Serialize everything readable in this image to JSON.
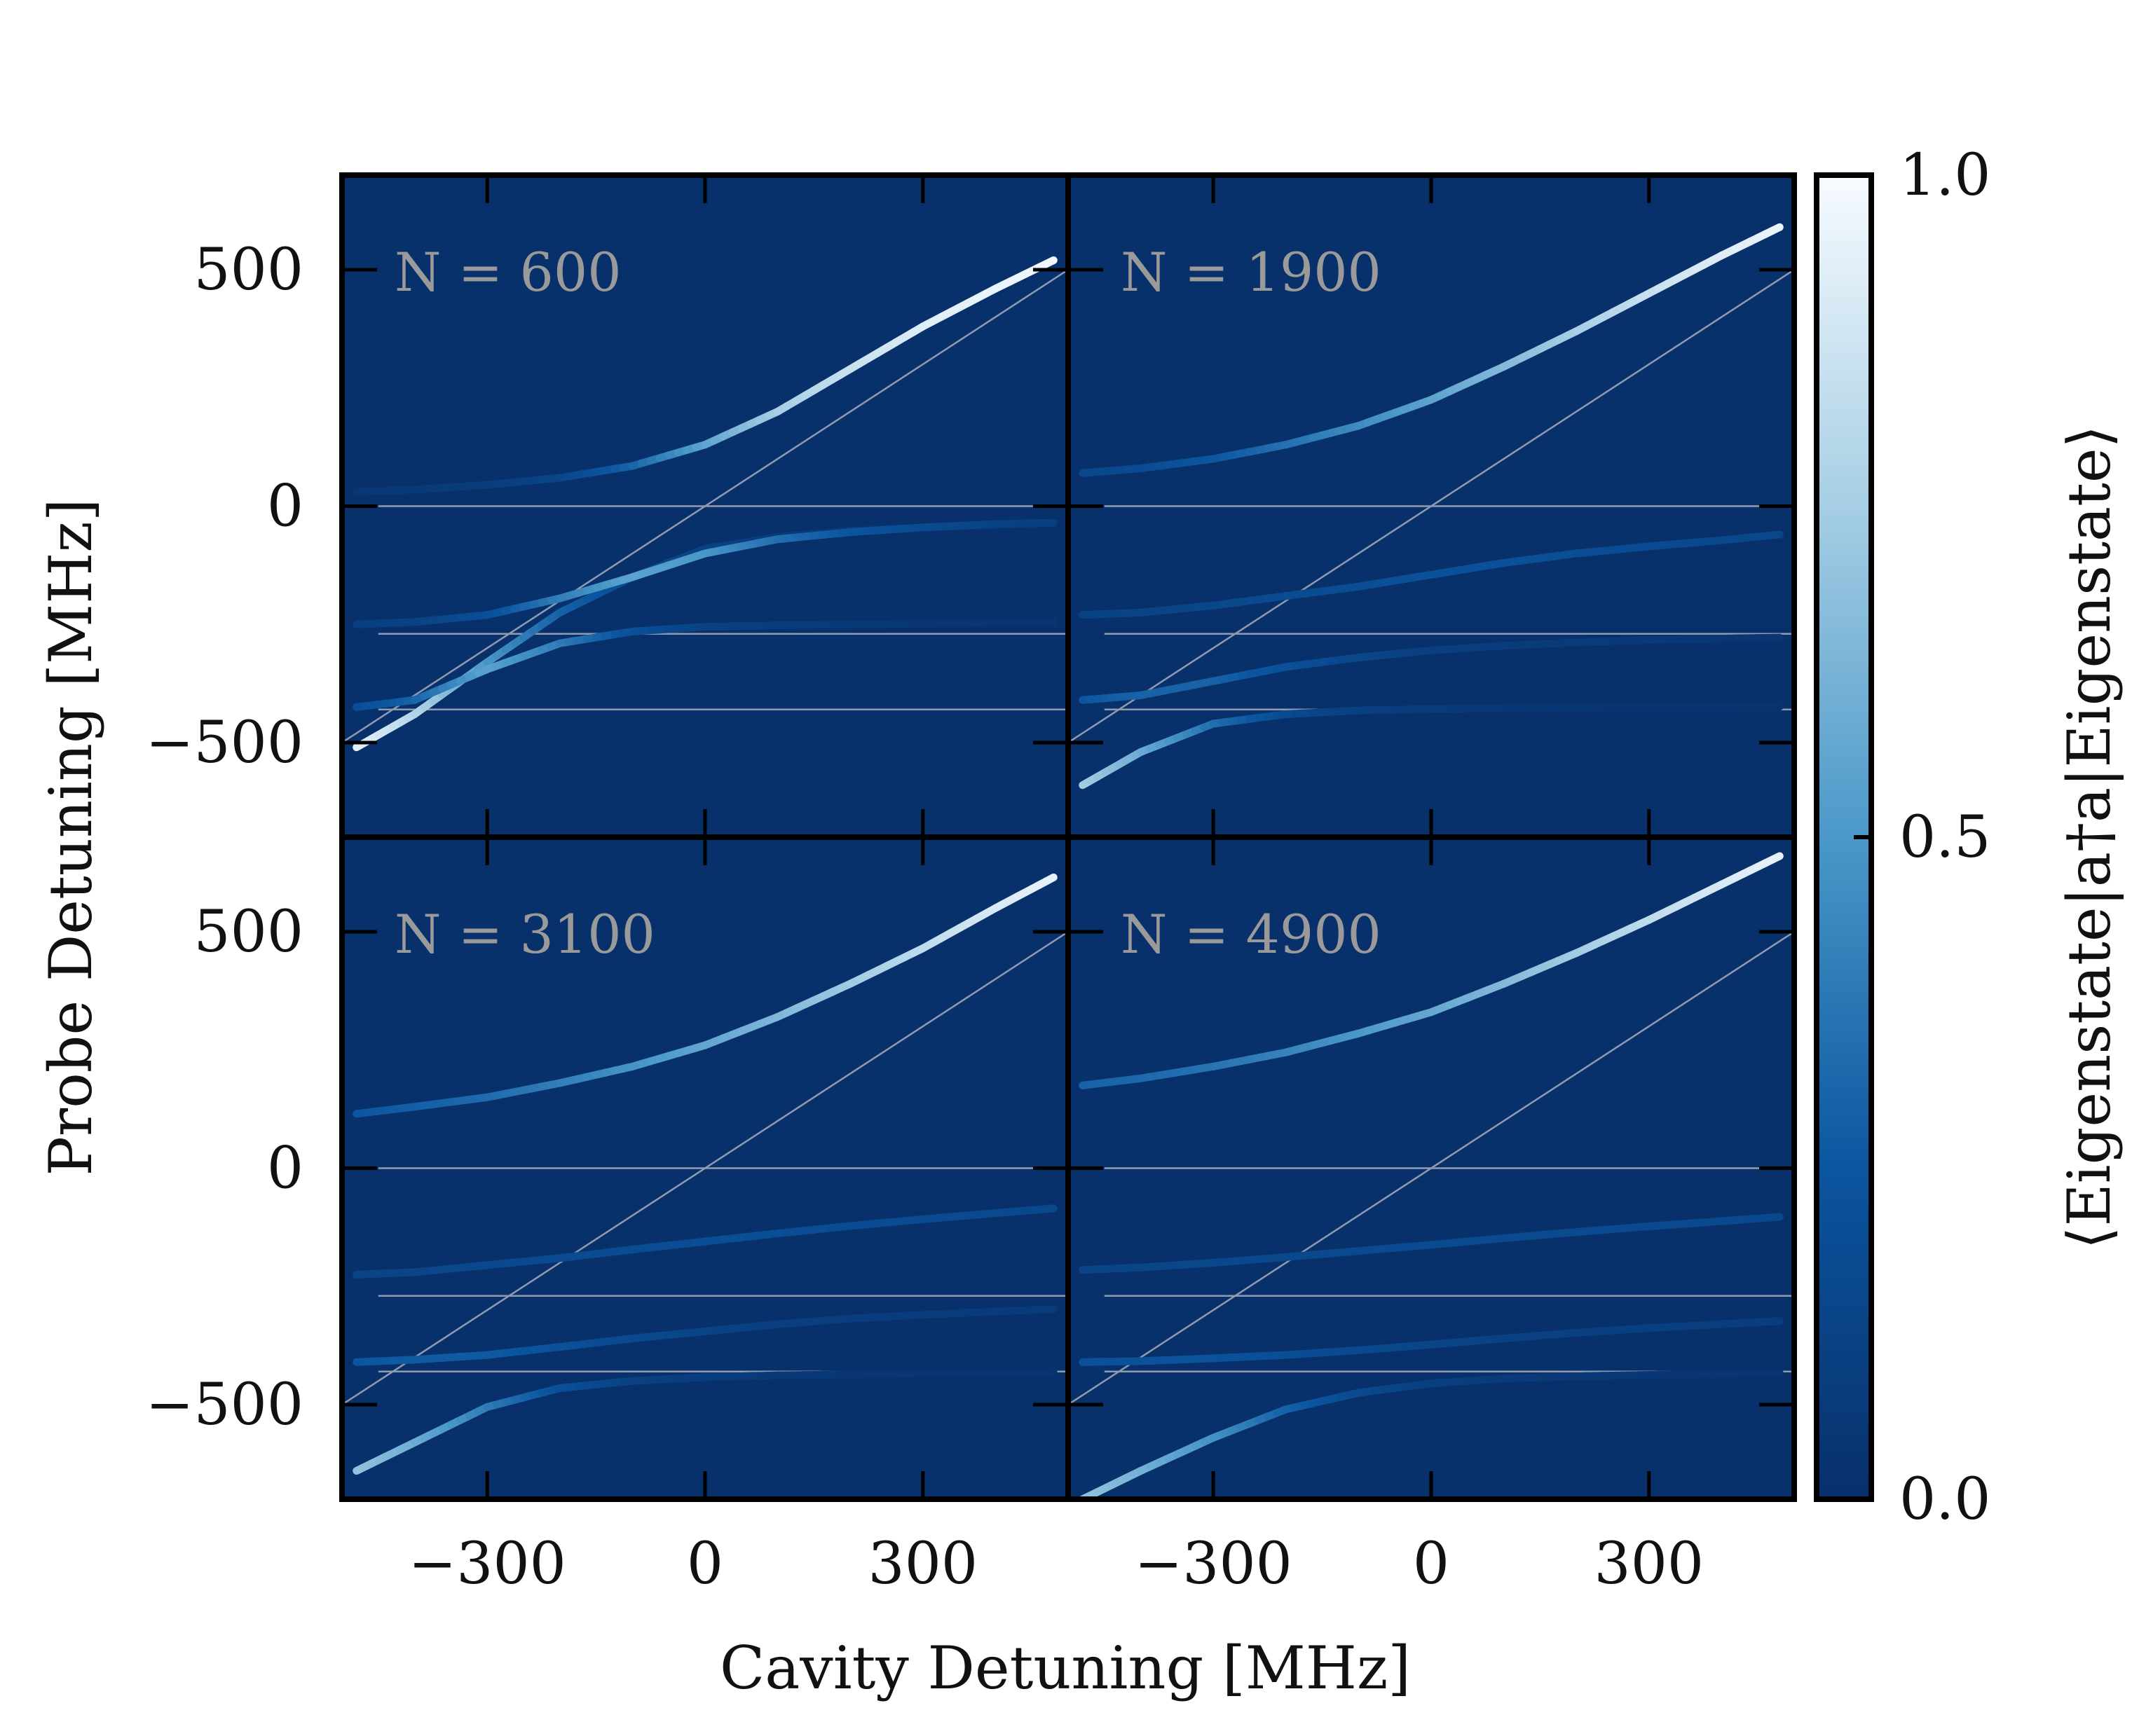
{
  "chart_data": {
    "type": "line",
    "xlabel": "Cavity Detuning [MHz]",
    "ylabel": "Probe Detuning [MHz]",
    "colorbar": {
      "label": "⟨Eigenstate|a†a|Eigenstate⟩",
      "ticks": [
        "0.0",
        "0.5",
        "1.0"
      ],
      "range": [
        0.0,
        1.0
      ],
      "colormap": "Blues_r"
    },
    "xlim": [
      -500,
      500
    ],
    "ylim": [
      -700,
      700
    ],
    "x_ticks": [
      -300,
      0,
      300
    ],
    "x_tick_labels": [
      "−300",
      "0",
      "300"
    ],
    "y_ticks": [
      -500,
      0,
      500
    ],
    "y_tick_labels": [
      "−500",
      "0",
      "500"
    ],
    "reference_lines": {
      "horizontal_levels": [
        0,
        -270,
        -430
      ],
      "diagonal": "y = x"
    },
    "colors": {
      "background": "#08306b",
      "reference_line": "#8f9bb0"
    },
    "panels": [
      {
        "label": "N = 600",
        "N": 600,
        "branches": [
          {
            "x": [
              -480,
              -400,
              -300,
              -200,
              -100,
              0,
              100,
              200,
              300,
              400,
              480
            ],
            "y": [
              -510,
              -440,
              -330,
              -225,
              -150,
              -90,
              -65,
              -52,
              -45,
              -40,
              -37
            ],
            "intensity": [
              0.95,
              0.8,
              0.5,
              0.3,
              0.2,
              0.12,
              0.08,
              0.06,
              0.05,
              0.04,
              0.03
            ]
          },
          {
            "x": [
              -480,
              -400,
              -300,
              -200,
              -100,
              0,
              100,
              200,
              300,
              400,
              480
            ],
            "y": [
              -425,
              -410,
              -345,
              -290,
              -265,
              -255,
              -252,
              -250,
              -248,
              -246,
              -245
            ],
            "intensity": [
              0.2,
              0.3,
              0.55,
              0.4,
              0.22,
              0.12,
              0.08,
              0.06,
              0.05,
              0.04,
              0.03
            ]
          },
          {
            "x": [
              -480,
              -400,
              -300,
              -200,
              -100,
              0,
              100,
              200,
              300,
              400,
              480
            ],
            "y": [
              -250,
              -245,
              -230,
              -195,
              -150,
              -100,
              -70,
              -55,
              -45,
              -38,
              -35
            ],
            "intensity": [
              0.1,
              0.12,
              0.2,
              0.4,
              0.55,
              0.5,
              0.35,
              0.25,
              0.18,
              0.12,
              0.1
            ]
          },
          {
            "x": [
              -480,
              -400,
              -300,
              -200,
              -100,
              0,
              100,
              200,
              300,
              400,
              480
            ],
            "y": [
              30,
              35,
              45,
              60,
              85,
              130,
              200,
              290,
              380,
              460,
              520
            ],
            "intensity": [
              0.05,
              0.06,
              0.08,
              0.14,
              0.3,
              0.55,
              0.75,
              0.85,
              0.92,
              0.96,
              0.98
            ]
          }
        ]
      },
      {
        "label": "N = 1900",
        "N": 1900,
        "branches": [
          {
            "x": [
              -480,
              -400,
              -300,
              -200,
              -100,
              0,
              100,
              200,
              300,
              400,
              480
            ],
            "y": [
              -590,
              -520,
              -460,
              -440,
              -432,
              -429,
              -427,
              -426,
              -425,
              -425,
              -424
            ],
            "intensity": [
              0.75,
              0.6,
              0.35,
              0.18,
              0.1,
              0.07,
              0.05,
              0.04,
              0.03,
              0.03,
              0.02
            ]
          },
          {
            "x": [
              -480,
              -400,
              -300,
              -200,
              -100,
              0,
              100,
              200,
              300,
              400,
              480
            ],
            "y": [
              -410,
              -400,
              -370,
              -340,
              -320,
              -305,
              -295,
              -288,
              -283,
              -280,
              -278
            ],
            "intensity": [
              0.25,
              0.3,
              0.3,
              0.22,
              0.15,
              0.1,
              0.08,
              0.07,
              0.06,
              0.05,
              0.05
            ]
          },
          {
            "x": [
              -480,
              -400,
              -300,
              -200,
              -100,
              0,
              100,
              200,
              300,
              400,
              480
            ],
            "y": [
              -230,
              -225,
              -210,
              -190,
              -170,
              -145,
              -120,
              -100,
              -85,
              -72,
              -60
            ],
            "intensity": [
              0.12,
              0.13,
              0.15,
              0.18,
              0.2,
              0.22,
              0.22,
              0.2,
              0.18,
              0.16,
              0.15
            ]
          },
          {
            "x": [
              -480,
              -400,
              -300,
              -200,
              -100,
              0,
              100,
              200,
              300,
              400,
              480
            ],
            "y": [
              70,
              80,
              100,
              130,
              170,
              225,
              295,
              370,
              450,
              530,
              590
            ],
            "intensity": [
              0.15,
              0.18,
              0.25,
              0.35,
              0.45,
              0.55,
              0.65,
              0.75,
              0.85,
              0.92,
              0.96
            ]
          }
        ]
      },
      {
        "label": "N = 3100",
        "N": 3100,
        "branches": [
          {
            "x": [
              -480,
              -400,
              -300,
              -200,
              -100,
              0,
              100,
              200,
              300,
              400,
              480
            ],
            "y": [
              -640,
              -580,
              -505,
              -465,
              -450,
              -442,
              -438,
              -436,
              -434,
              -433,
              -432
            ],
            "intensity": [
              0.7,
              0.6,
              0.4,
              0.22,
              0.12,
              0.08,
              0.06,
              0.05,
              0.04,
              0.03,
              0.03
            ]
          },
          {
            "x": [
              -480,
              -400,
              -300,
              -200,
              -100,
              0,
              100,
              200,
              300,
              400,
              480
            ],
            "y": [
              -410,
              -405,
              -395,
              -378,
              -360,
              -345,
              -330,
              -318,
              -310,
              -303,
              -298
            ],
            "intensity": [
              0.25,
              0.27,
              0.27,
              0.22,
              0.17,
              0.13,
              0.1,
              0.09,
              0.08,
              0.07,
              0.07
            ]
          },
          {
            "x": [
              -480,
              -400,
              -300,
              -200,
              -100,
              0,
              100,
              200,
              300,
              400,
              480
            ],
            "y": [
              -225,
              -220,
              -205,
              -190,
              -172,
              -155,
              -138,
              -122,
              -108,
              -95,
              -85
            ],
            "intensity": [
              0.13,
              0.14,
              0.16,
              0.18,
              0.19,
              0.2,
              0.2,
              0.19,
              0.18,
              0.17,
              0.16
            ]
          },
          {
            "x": [
              -480,
              -400,
              -300,
              -200,
              -100,
              0,
              100,
              200,
              300,
              400,
              480
            ],
            "y": [
              115,
              130,
              150,
              180,
              215,
              260,
              320,
              390,
              465,
              550,
              615
            ],
            "intensity": [
              0.25,
              0.28,
              0.33,
              0.4,
              0.48,
              0.56,
              0.64,
              0.73,
              0.82,
              0.9,
              0.95
            ]
          }
        ]
      },
      {
        "label": "N = 4900",
        "N": 4900,
        "branches": [
          {
            "x": [
              -480,
              -400,
              -300,
              -200,
              -100,
              0,
              100,
              200,
              300,
              400,
              480
            ],
            "y": [
              -700,
              -640,
              -570,
              -510,
              -475,
              -455,
              -445,
              -440,
              -437,
              -435,
              -433
            ],
            "intensity": [
              0.7,
              0.62,
              0.48,
              0.3,
              0.17,
              0.1,
              0.07,
              0.06,
              0.05,
              0.04,
              0.03
            ]
          },
          {
            "x": [
              -480,
              -400,
              -300,
              -200,
              -100,
              0,
              100,
              200,
              300,
              400,
              480
            ],
            "y": [
              -410,
              -408,
              -402,
              -395,
              -385,
              -373,
              -360,
              -348,
              -338,
              -330,
              -323
            ],
            "intensity": [
              0.22,
              0.23,
              0.23,
              0.2,
              0.17,
              0.14,
              0.12,
              0.11,
              0.1,
              0.09,
              0.09
            ]
          },
          {
            "x": [
              -480,
              -400,
              -300,
              -200,
              -100,
              0,
              100,
              200,
              300,
              400,
              480
            ],
            "y": [
              -215,
              -210,
              -200,
              -188,
              -175,
              -162,
              -148,
              -135,
              -123,
              -112,
              -103
            ],
            "intensity": [
              0.13,
              0.14,
              0.15,
              0.16,
              0.17,
              0.18,
              0.18,
              0.18,
              0.17,
              0.17,
              0.16
            ]
          },
          {
            "x": [
              -480,
              -400,
              -300,
              -200,
              -100,
              0,
              100,
              200,
              300,
              400,
              480
            ],
            "y": [
              175,
              190,
              215,
              245,
              285,
              330,
              390,
              455,
              525,
              600,
              660
            ],
            "intensity": [
              0.3,
              0.32,
              0.36,
              0.42,
              0.5,
              0.57,
              0.65,
              0.74,
              0.82,
              0.9,
              0.95
            ]
          }
        ]
      }
    ]
  }
}
